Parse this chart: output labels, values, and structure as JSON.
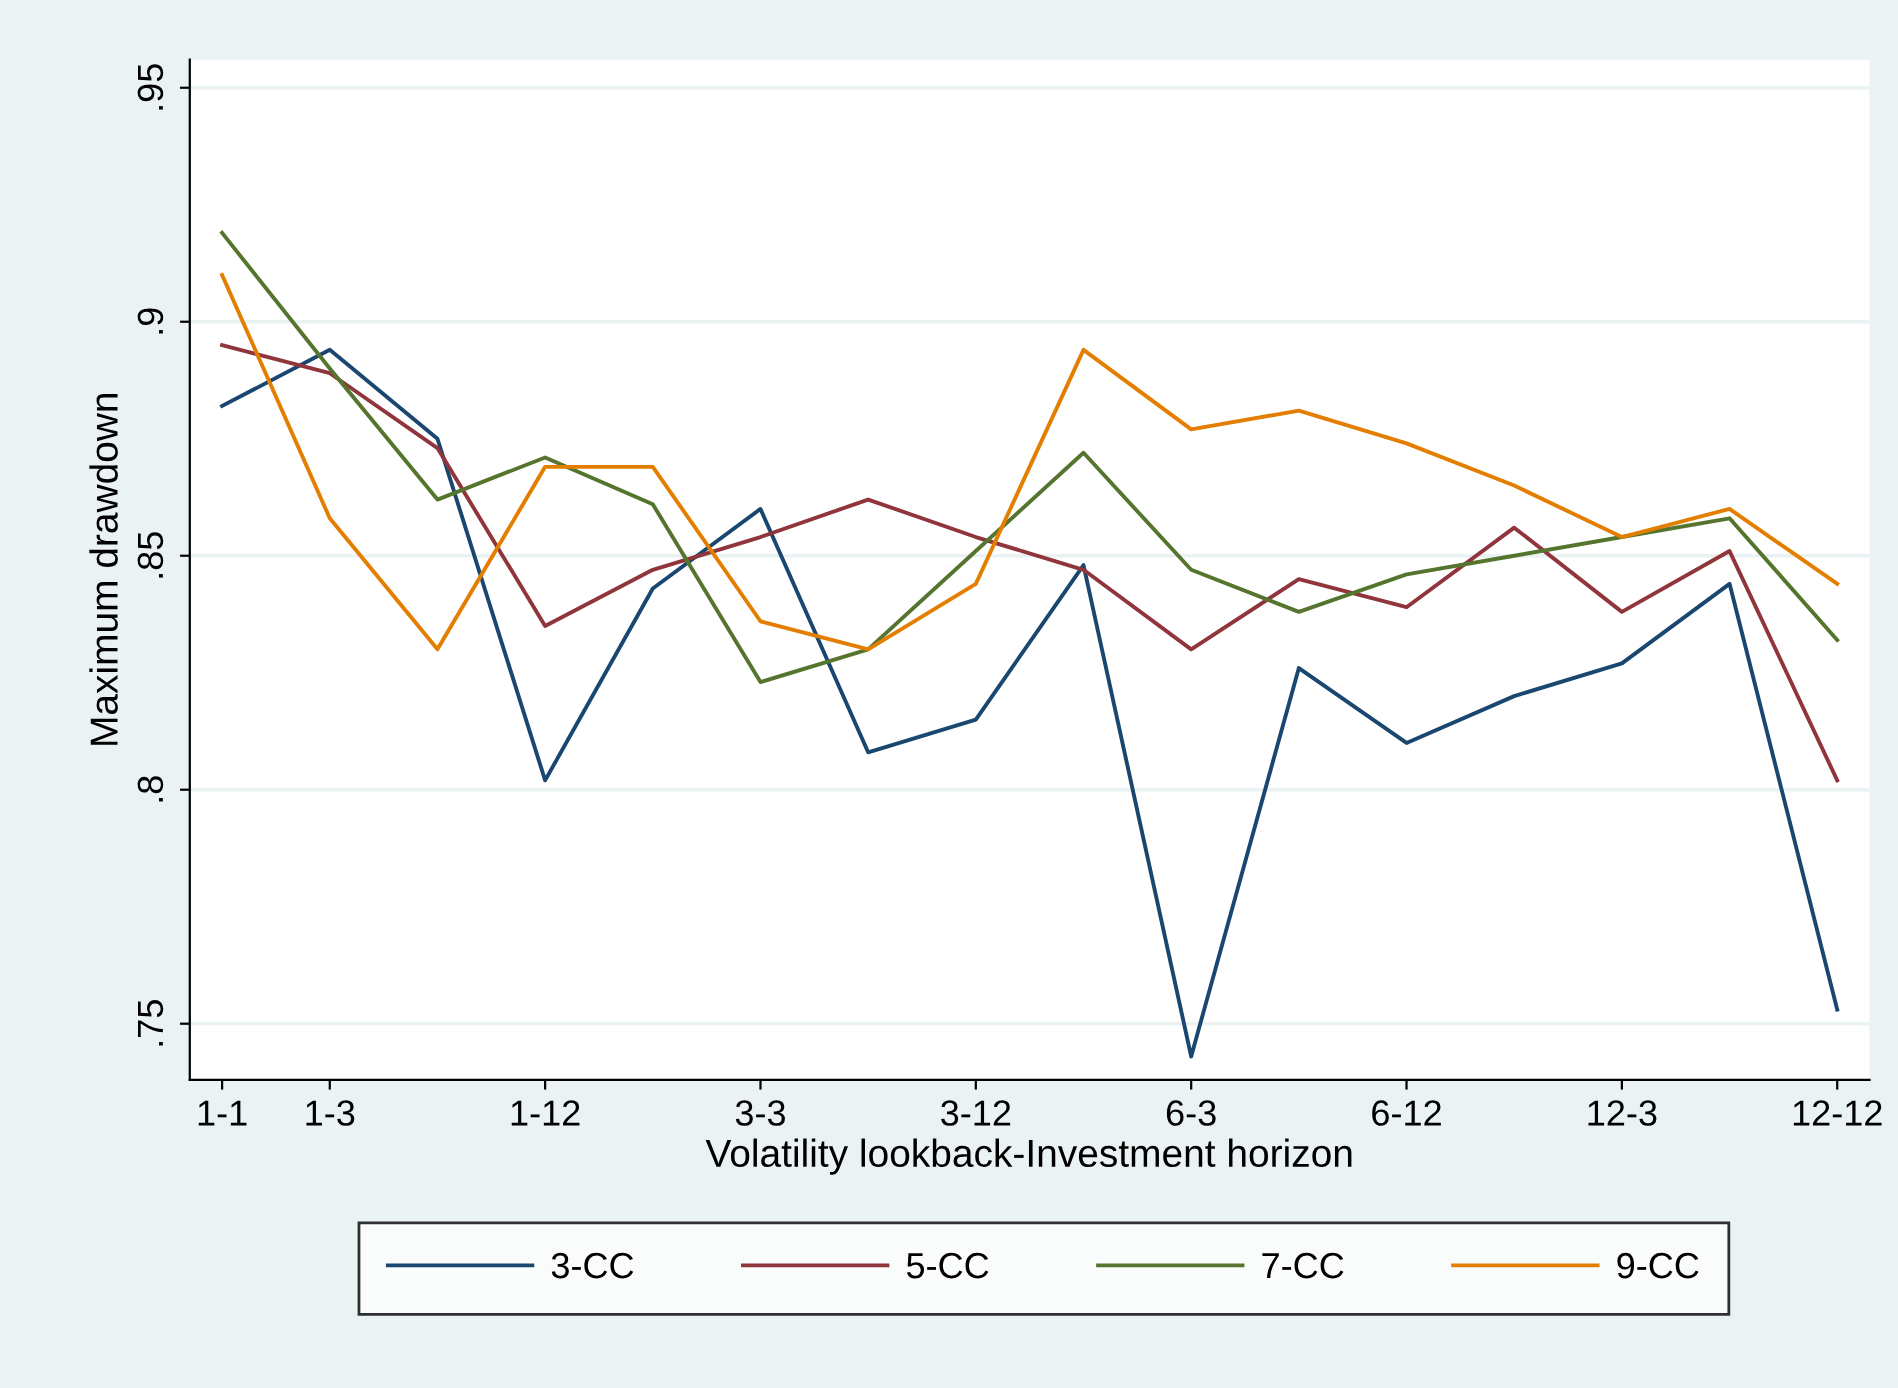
{
  "chart_data": {
    "type": "line",
    "xlabel": "Volatility lookback-Investment horizon",
    "ylabel": "Maximum drawdown",
    "categories": [
      "1-1",
      "1-3",
      null,
      "1-12",
      null,
      "3-3",
      null,
      "3-12",
      null,
      "6-3",
      null,
      "6-12",
      null,
      "12-3",
      null,
      "12-12"
    ],
    "series": [
      {
        "name": "3-CC",
        "color": "#1a476f",
        "values": [
          0.882,
          0.894,
          0.875,
          0.802,
          0.843,
          0.86,
          0.808,
          0.815,
          0.848,
          0.743,
          0.826,
          0.81,
          0.82,
          0.827,
          0.844,
          0.753
        ]
      },
      {
        "name": "5-CC",
        "color": "#90353b",
        "values": [
          0.895,
          0.889,
          0.873,
          0.835,
          0.847,
          0.854,
          0.862,
          0.854,
          0.847,
          0.83,
          0.845,
          0.839,
          0.856,
          0.838,
          0.851,
          0.802
        ]
      },
      {
        "name": "7-CC",
        "color": "#55752f",
        "values": [
          0.919,
          0.89,
          0.862,
          0.871,
          0.861,
          0.823,
          0.83,
          0.851,
          0.872,
          0.847,
          0.838,
          0.846,
          0.85,
          0.854,
          0.858,
          0.832
        ]
      },
      {
        "name": "9-CC",
        "color": "#e37e00",
        "values": [
          0.91,
          0.858,
          0.83,
          0.869,
          0.869,
          0.836,
          0.83,
          0.844,
          0.894,
          0.877,
          0.881,
          0.874,
          0.865,
          0.854,
          0.86,
          0.844
        ]
      }
    ],
    "ylim": [
      0.738,
      0.956
    ],
    "yticks": [
      {
        "value": 0.75,
        "label": ".75"
      },
      {
        "value": 0.8,
        "label": ".8"
      },
      {
        "value": 0.85,
        "label": ".85"
      },
      {
        "value": 0.9,
        "label": ".9"
      },
      {
        "value": 0.95,
        "label": ".95"
      }
    ],
    "grid": "y",
    "legend": "bottom",
    "marker": "none",
    "line_style": "solid"
  }
}
